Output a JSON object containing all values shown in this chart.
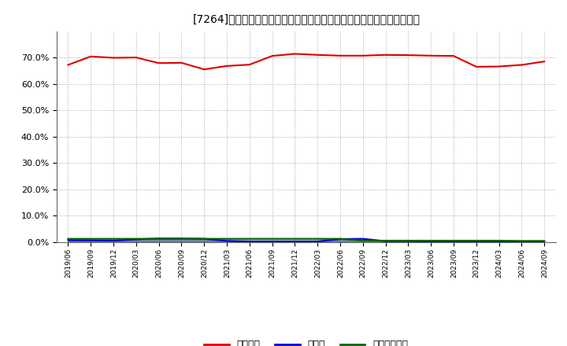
{
  "title": "[7264]　自己資本、のれん、繰延税金資産の総資産に対する比率の推移",
  "x_labels": [
    "2019/06",
    "2019/09",
    "2019/12",
    "2020/03",
    "2020/06",
    "2020/09",
    "2020/12",
    "2021/03",
    "2021/06",
    "2021/09",
    "2021/12",
    "2022/03",
    "2022/06",
    "2022/09",
    "2022/12",
    "2023/03",
    "2023/06",
    "2023/09",
    "2023/12",
    "2024/03",
    "2024/06",
    "2024/09"
  ],
  "equity_ratio": [
    0.672,
    0.704,
    0.699,
    0.7,
    0.679,
    0.68,
    0.655,
    0.668,
    0.673,
    0.706,
    0.714,
    0.71,
    0.707,
    0.707,
    0.71,
    0.709,
    0.707,
    0.706,
    0.665,
    0.666,
    0.672,
    0.685
  ],
  "goodwill_ratio": [
    0.008,
    0.007,
    0.006,
    0.011,
    0.014,
    0.014,
    0.013,
    0.005,
    0.003,
    0.003,
    0.003,
    0.003,
    0.012,
    0.013,
    0.004,
    0.004,
    0.003,
    0.003,
    0.002,
    0.002,
    0.002,
    0.002
  ],
  "deferred_tax_ratio": [
    0.013,
    0.013,
    0.013,
    0.013,
    0.013,
    0.013,
    0.013,
    0.013,
    0.013,
    0.013,
    0.013,
    0.013,
    0.013,
    0.006,
    0.006,
    0.006,
    0.006,
    0.006,
    0.006,
    0.006,
    0.005,
    0.005
  ],
  "equity_color": "#dd0000",
  "goodwill_color": "#0000cc",
  "deferred_tax_color": "#006600",
  "background_color": "#ffffff",
  "plot_bg_color": "#ffffff",
  "grid_color": "#999999",
  "legend_labels": [
    "自己資本",
    "のれん",
    "繰延税金資産"
  ],
  "ylim": [
    0.0,
    0.8
  ],
  "yticks": [
    0.0,
    0.1,
    0.2,
    0.3,
    0.4,
    0.5,
    0.6,
    0.7
  ]
}
